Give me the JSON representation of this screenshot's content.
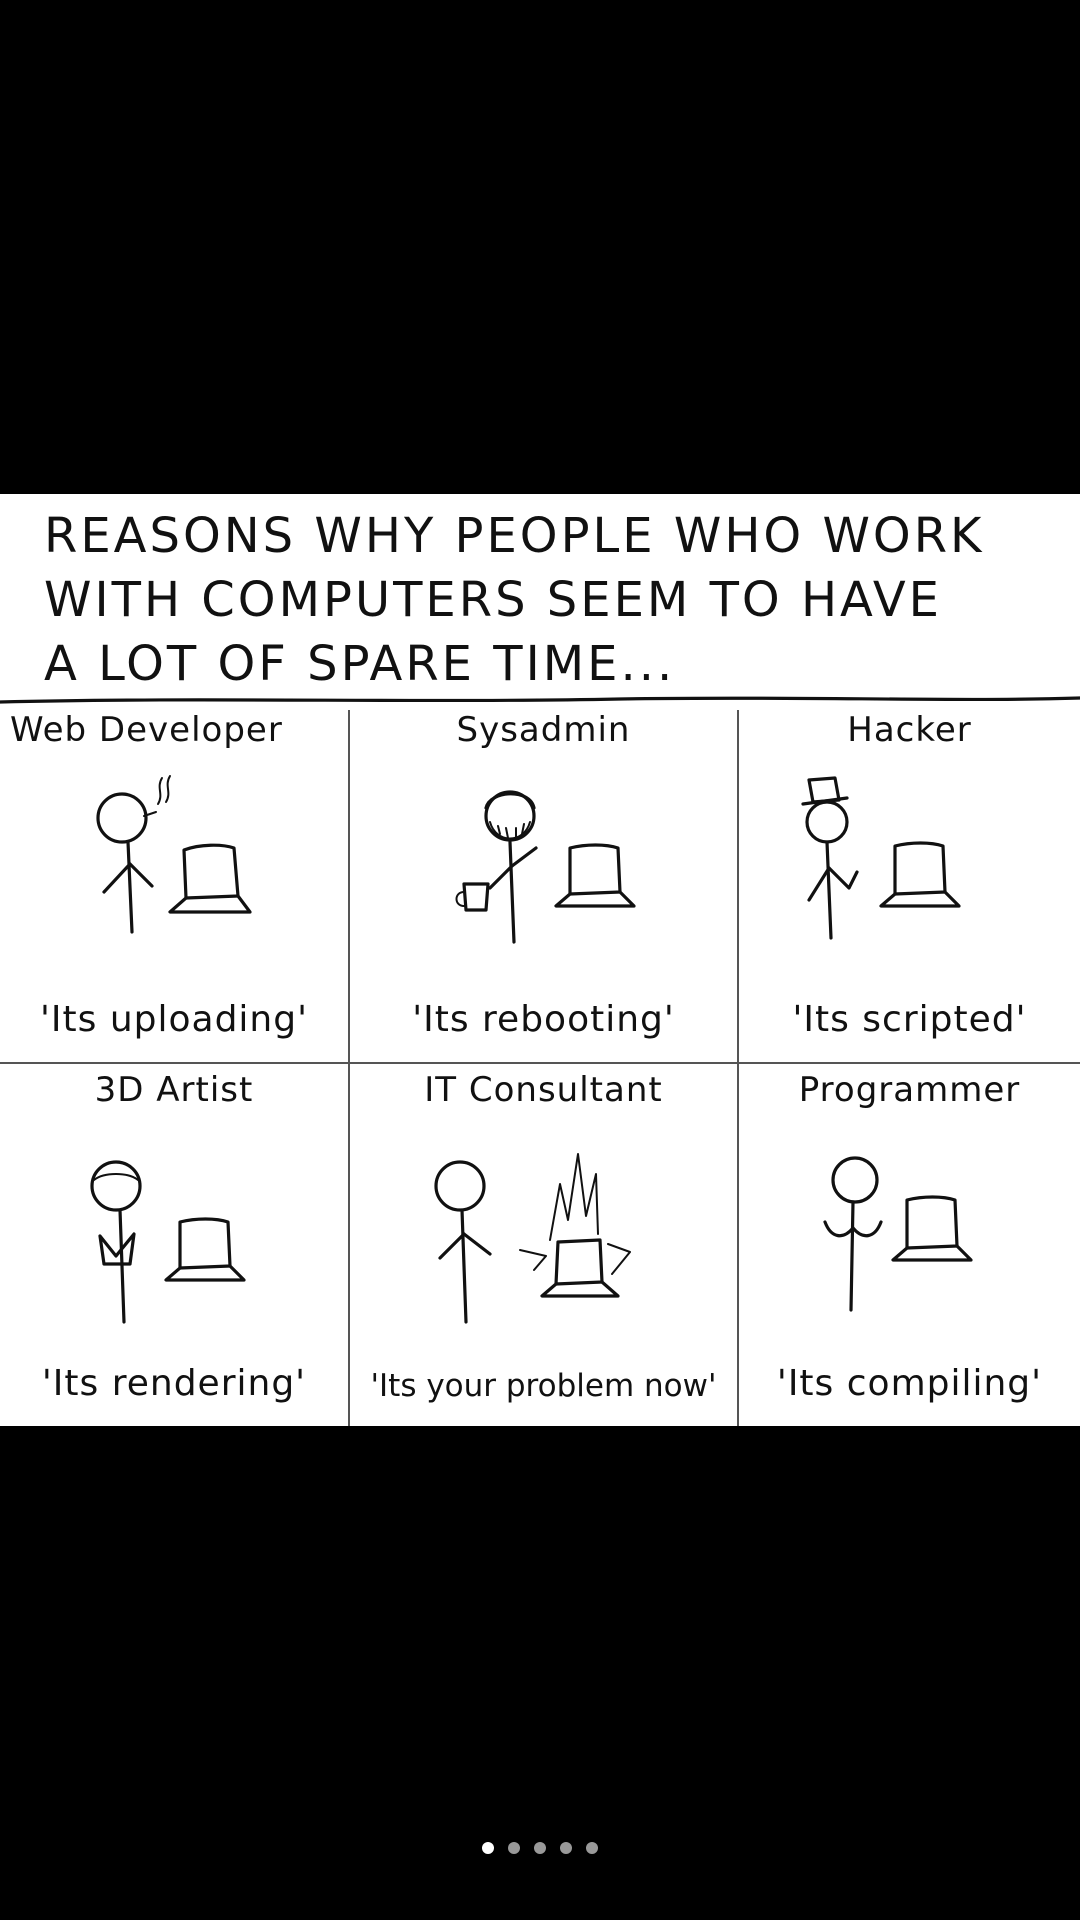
{
  "comic": {
    "title_lines": [
      "REASONS WHY PEOPLE WHO WORK",
      "WITH COMPUTERS SEEM TO HAVE",
      "A LOT OF SPARE TIME..."
    ],
    "panels": [
      {
        "label": "Web Developer",
        "caption": "'Its uploading'",
        "icon": "stick-figure-smoking-icon"
      },
      {
        "label": "Sysadmin",
        "caption": "'Its rebooting'",
        "icon": "stick-figure-beard-mug-icon"
      },
      {
        "label": "Hacker",
        "caption": "'Its scripted'",
        "icon": "stick-figure-top-hat-icon"
      },
      {
        "label": "3D Artist",
        "caption": "'Its rendering'",
        "icon": "stick-figure-reading-icon"
      },
      {
        "label": "IT Consultant",
        "caption": "'Its your problem now'",
        "icon": "stick-figure-burning-laptop-icon"
      },
      {
        "label": "Programmer",
        "caption": "'Its compiling'",
        "icon": "stick-figure-laptop-icon"
      }
    ]
  },
  "pagination": {
    "page_count": 5,
    "current_page": 1
  }
}
